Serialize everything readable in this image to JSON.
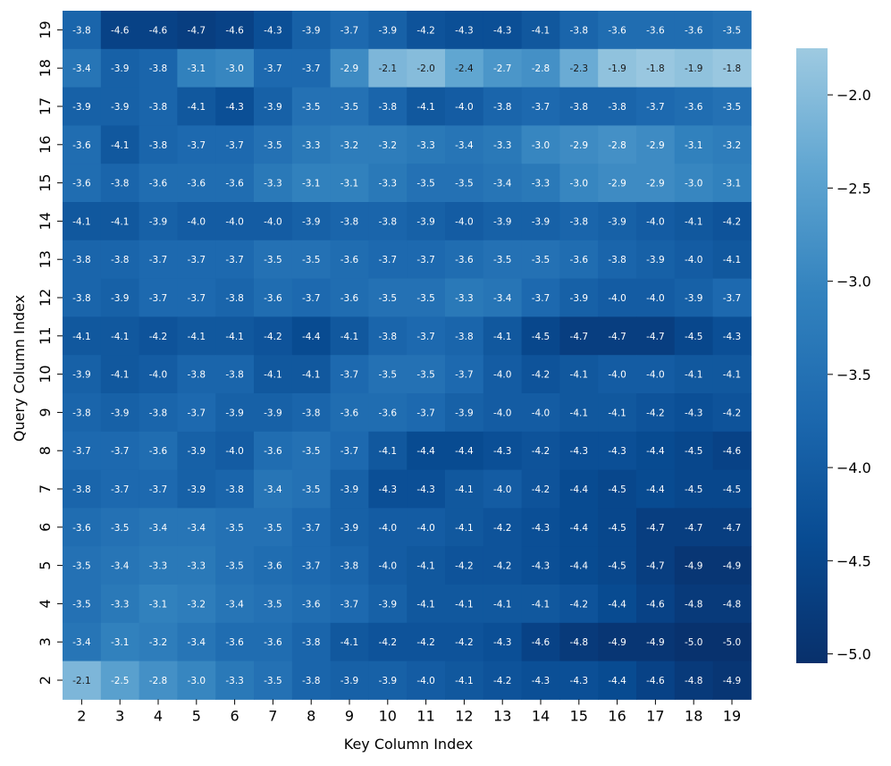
{
  "chart_data": {
    "type": "heatmap",
    "title": "",
    "xlabel": "Key Column Index",
    "ylabel": "Query Column Index",
    "x": [
      "2",
      "3",
      "4",
      "5",
      "6",
      "7",
      "8",
      "9",
      "10",
      "11",
      "12",
      "13",
      "14",
      "15",
      "16",
      "17",
      "18",
      "19"
    ],
    "y": [
      "19",
      "18",
      "17",
      "16",
      "15",
      "14",
      "13",
      "12",
      "11",
      "10",
      "9",
      "8",
      "7",
      "6",
      "5",
      "4",
      "3",
      "2"
    ],
    "values": [
      [
        -3.8,
        -4.6,
        -4.6,
        -4.7,
        -4.6,
        -4.3,
        -3.9,
        -3.7,
        -3.9,
        -4.2,
        -4.3,
        -4.3,
        -4.1,
        -3.8,
        -3.6,
        -3.6,
        -3.6,
        -3.5
      ],
      [
        -3.4,
        -3.9,
        -3.8,
        -3.1,
        -3.0,
        -3.7,
        -3.7,
        -2.9,
        -2.1,
        -2.0,
        -2.4,
        -2.7,
        -2.8,
        -2.3,
        -1.9,
        -1.8,
        -1.9,
        -1.8
      ],
      [
        -3.9,
        -3.9,
        -3.8,
        -4.1,
        -4.3,
        -3.9,
        -3.5,
        -3.5,
        -3.8,
        -4.1,
        -4.0,
        -3.8,
        -3.7,
        -3.8,
        -3.8,
        -3.7,
        -3.6,
        -3.5
      ],
      [
        -3.6,
        -4.1,
        -3.8,
        -3.7,
        -3.7,
        -3.5,
        -3.3,
        -3.2,
        -3.2,
        -3.3,
        -3.4,
        -3.3,
        -3.0,
        -2.9,
        -2.8,
        -2.9,
        -3.1,
        -3.2
      ],
      [
        -3.6,
        -3.8,
        -3.6,
        -3.6,
        -3.6,
        -3.3,
        -3.1,
        -3.1,
        -3.3,
        -3.5,
        -3.5,
        -3.4,
        -3.3,
        -3.0,
        -2.9,
        -2.9,
        -3.0,
        -3.1
      ],
      [
        -4.1,
        -4.1,
        -3.9,
        -4.0,
        -4.0,
        -4.0,
        -3.9,
        -3.8,
        -3.8,
        -3.9,
        -4.0,
        -3.9,
        -3.9,
        -3.8,
        -3.9,
        -4.0,
        -4.1,
        -4.2
      ],
      [
        -3.8,
        -3.8,
        -3.7,
        -3.7,
        -3.7,
        -3.5,
        -3.5,
        -3.6,
        -3.7,
        -3.7,
        -3.6,
        -3.5,
        -3.5,
        -3.6,
        -3.8,
        -3.9,
        -4.0,
        -4.1
      ],
      [
        -3.8,
        -3.9,
        -3.7,
        -3.7,
        -3.8,
        -3.6,
        -3.7,
        -3.6,
        -3.5,
        -3.5,
        -3.3,
        -3.4,
        -3.7,
        -3.9,
        -4.0,
        -4.0,
        -3.9,
        -3.7
      ],
      [
        -4.1,
        -4.1,
        -4.2,
        -4.1,
        -4.1,
        -4.2,
        -4.4,
        -4.1,
        -3.8,
        -3.7,
        -3.8,
        -4.1,
        -4.5,
        -4.7,
        -4.7,
        -4.7,
        -4.5,
        -4.3
      ],
      [
        -3.9,
        -4.1,
        -4.0,
        -3.8,
        -3.8,
        -4.1,
        -4.1,
        -3.7,
        -3.5,
        -3.5,
        -3.7,
        -4.0,
        -4.2,
        -4.1,
        -4.0,
        -4.0,
        -4.1,
        -4.1
      ],
      [
        -3.8,
        -3.9,
        -3.8,
        -3.7,
        -3.9,
        -3.9,
        -3.8,
        -3.6,
        -3.6,
        -3.7,
        -3.9,
        -4.0,
        -4.0,
        -4.1,
        -4.1,
        -4.2,
        -4.3,
        -4.2
      ],
      [
        -3.7,
        -3.7,
        -3.6,
        -3.9,
        -4.0,
        -3.6,
        -3.5,
        -3.7,
        -4.1,
        -4.4,
        -4.4,
        -4.3,
        -4.2,
        -4.3,
        -4.3,
        -4.4,
        -4.5,
        -4.6
      ],
      [
        -3.8,
        -3.7,
        -3.7,
        -3.9,
        -3.8,
        -3.4,
        -3.5,
        -3.9,
        -4.3,
        -4.3,
        -4.1,
        -4.0,
        -4.2,
        -4.4,
        -4.5,
        -4.4,
        -4.5,
        -4.5
      ],
      [
        -3.6,
        -3.5,
        -3.4,
        -3.4,
        -3.5,
        -3.5,
        -3.7,
        -3.9,
        -4.0,
        -4.0,
        -4.1,
        -4.2,
        -4.3,
        -4.4,
        -4.5,
        -4.7,
        -4.7,
        -4.7
      ],
      [
        -3.5,
        -3.4,
        -3.3,
        -3.3,
        -3.5,
        -3.6,
        -3.7,
        -3.8,
        -4.0,
        -4.1,
        -4.2,
        -4.2,
        -4.3,
        -4.4,
        -4.5,
        -4.7,
        -4.9,
        -4.9
      ],
      [
        -3.5,
        -3.3,
        -3.1,
        -3.2,
        -3.4,
        -3.5,
        -3.6,
        -3.7,
        -3.9,
        -4.1,
        -4.1,
        -4.1,
        -4.1,
        -4.2,
        -4.4,
        -4.6,
        -4.8,
        -4.8
      ],
      [
        -3.4,
        -3.1,
        -3.2,
        -3.4,
        -3.6,
        -3.6,
        -3.8,
        -4.1,
        -4.2,
        -4.2,
        -4.2,
        -4.3,
        -4.6,
        -4.8,
        -4.9,
        -4.9,
        -5.0,
        -5.0
      ],
      [
        -2.1,
        -2.5,
        -2.8,
        -3.0,
        -3.3,
        -3.5,
        -3.8,
        -3.9,
        -3.9,
        -4.0,
        -4.1,
        -4.2,
        -4.3,
        -4.3,
        -4.4,
        -4.6,
        -4.8,
        -4.9
      ]
    ],
    "colorbar": {
      "range": [
        -5.05,
        -1.75
      ],
      "ticks": [
        -2.0,
        -2.5,
        -3.0,
        -3.5,
        -4.0,
        -4.5,
        -5.0
      ],
      "tick_labels": [
        "−2.0",
        "−2.5",
        "−3.0",
        "−3.5",
        "−4.0",
        "−4.5",
        "−5.0"
      ],
      "colormap": "Blues",
      "color_low": "#08306b",
      "color_high": "#9ecae1"
    },
    "grid": false,
    "legend": "colorbar-right"
  }
}
